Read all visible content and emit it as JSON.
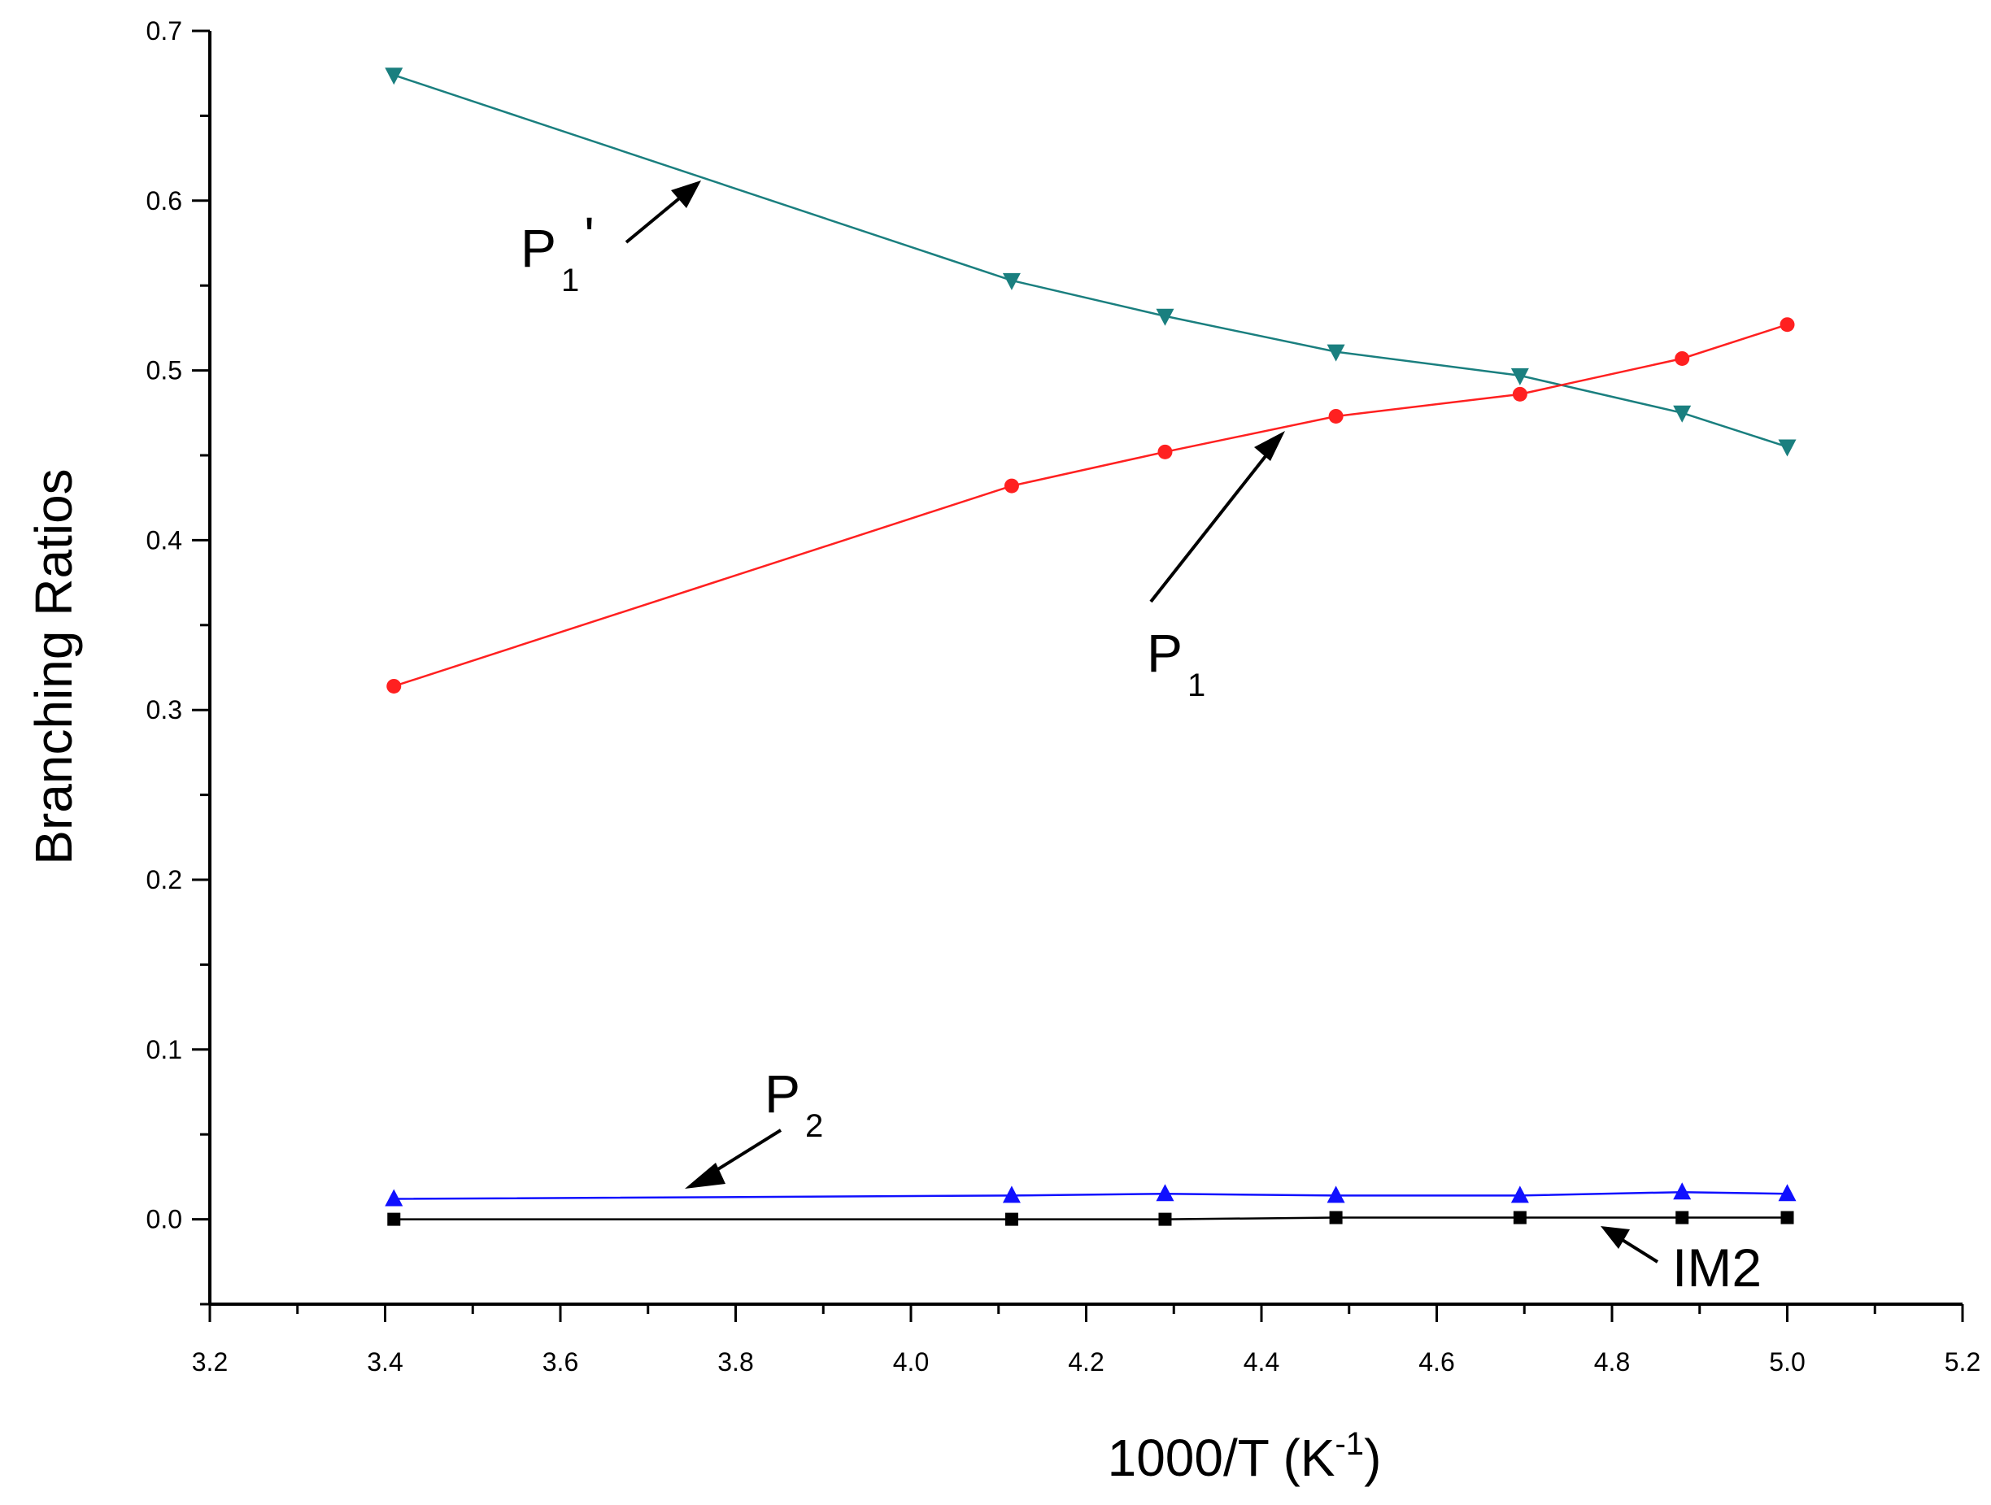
{
  "chart_data": {
    "type": "line",
    "title": "",
    "xlabel": "1000/T (K",
    "xlabel_sup": "-1",
    "xlabel_suffix": ")",
    "ylabel": "Branching Ratios",
    "xlim": [
      3.2,
      5.2
    ],
    "ylim": [
      -0.05,
      0.7
    ],
    "xticks": [
      "3.2",
      "3.4",
      "3.6",
      "3.8",
      "4.0",
      "4.2",
      "4.4",
      "4.6",
      "4.8",
      "5.0",
      "5.2"
    ],
    "yticks": [
      "0.0",
      "0.1",
      "0.2",
      "0.3",
      "0.4",
      "0.5",
      "0.6",
      "0.7"
    ],
    "grid": false,
    "x": [
      3.41,
      4.115,
      4.29,
      4.485,
      4.695,
      4.88,
      5.0
    ],
    "series": [
      {
        "name": "P1'",
        "color": "#1a7f7f",
        "marker": "triangle-down",
        "values": [
          0.674,
          0.553,
          0.532,
          0.511,
          0.497,
          0.475,
          0.455
        ]
      },
      {
        "name": "P1",
        "color": "#ff2020",
        "marker": "circle",
        "values": [
          0.314,
          0.432,
          0.452,
          0.473,
          0.486,
          0.507,
          0.527
        ]
      },
      {
        "name": "P2",
        "color": "#1010ff",
        "marker": "triangle-up",
        "values": [
          0.012,
          0.014,
          0.015,
          0.014,
          0.014,
          0.016,
          0.015
        ]
      },
      {
        "name": "IM2",
        "color": "#000000",
        "marker": "square",
        "values": [
          0.0,
          0.0,
          0.0,
          0.001,
          0.001,
          0.001,
          0.001
        ]
      }
    ],
    "annotations": [
      {
        "series": "P1'",
        "main": "P",
        "sub": "1",
        "suffix": "'"
      },
      {
        "series": "P1",
        "main": "P",
        "sub": "1",
        "suffix": ""
      },
      {
        "series": "P2",
        "main": "P",
        "sub": "2",
        "suffix": ""
      },
      {
        "series": "IM2",
        "main": "IM2",
        "sub": "",
        "suffix": ""
      }
    ]
  }
}
